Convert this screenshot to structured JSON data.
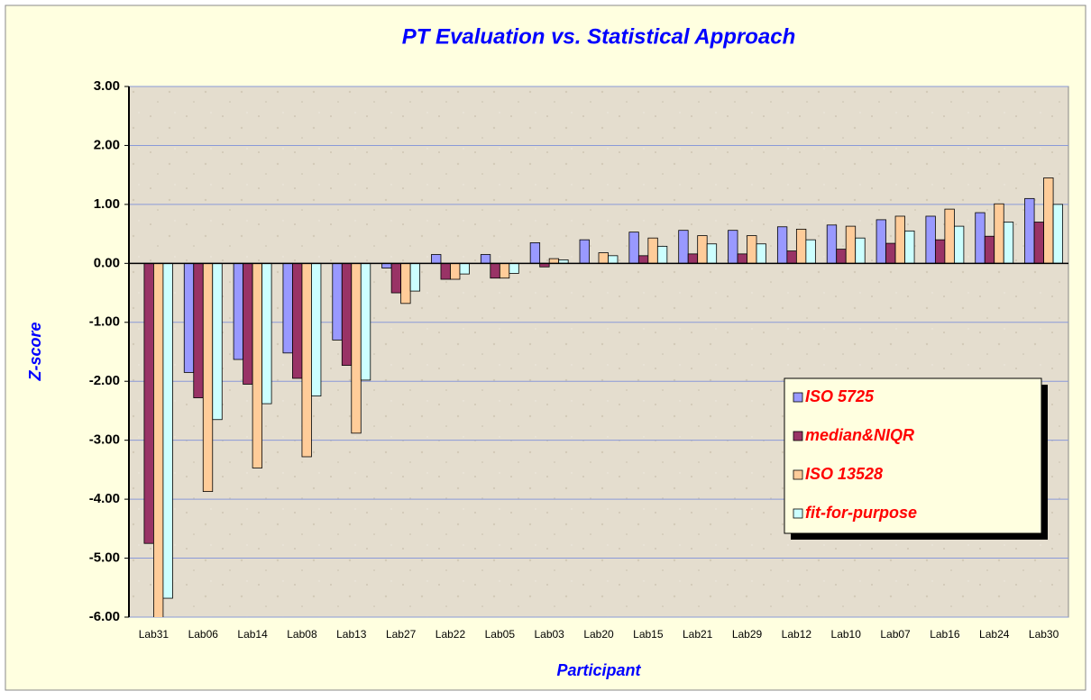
{
  "chart_data": {
    "type": "bar",
    "title": "PT Evaluation vs. Statistical Approach",
    "x_label": "Participant",
    "y_label": "Z-score",
    "categories": [
      "Lab31",
      "Lab06",
      "Lab14",
      "Lab08",
      "Lab13",
      "Lab27",
      "Lab22",
      "Lab05",
      "Lab03",
      "Lab20",
      "Lab15",
      "Lab21",
      "Lab29",
      "Lab12",
      "Lab10",
      "Lab07",
      "Lab16",
      "Lab24",
      "Lab30"
    ],
    "series": [
      {
        "name": "ISO 5725",
        "color": "#9999ff",
        "values": [
          null,
          -1.85,
          -1.63,
          -1.52,
          -1.3,
          -0.08,
          0.15,
          0.15,
          0.35,
          0.4,
          0.53,
          0.56,
          0.56,
          0.62,
          0.65,
          0.74,
          0.8,
          0.86,
          1.1
        ]
      },
      {
        "name": "median&NIQR",
        "color": "#993366",
        "values": [
          -4.75,
          -2.28,
          -2.05,
          -1.95,
          -1.73,
          -0.5,
          -0.27,
          -0.25,
          -0.06,
          0,
          0.13,
          0.16,
          0.16,
          0.21,
          0.24,
          0.34,
          0.4,
          0.46,
          0.7
        ]
      },
      {
        "name": "ISO 13528",
        "color": "#ffcc99",
        "values": [
          -6.3,
          -3.87,
          -3.47,
          -3.28,
          -2.88,
          -0.68,
          -0.27,
          -0.25,
          0.08,
          0.18,
          0.43,
          0.47,
          0.47,
          0.58,
          0.63,
          0.8,
          0.92,
          1.01,
          1.45
        ]
      },
      {
        "name": "fit-for-purpose",
        "color": "#ccffff",
        "values": [
          -5.68,
          -2.65,
          -2.38,
          -2.25,
          -1.98,
          -0.47,
          -0.18,
          -0.17,
          0.06,
          0.13,
          0.29,
          0.33,
          0.33,
          0.4,
          0.43,
          0.55,
          0.63,
          0.7,
          1.0
        ]
      }
    ],
    "ylim": [
      -6,
      3
    ],
    "yticks": [
      {
        "value": 3,
        "label": "3.00"
      },
      {
        "value": 2,
        "label": "2.00"
      },
      {
        "value": 1,
        "label": "1.00"
      },
      {
        "value": 0,
        "label": "0.00"
      },
      {
        "value": -1,
        "label": "-1.00"
      },
      {
        "value": -2,
        "label": "-2.00"
      },
      {
        "value": -3,
        "label": "-3.00"
      },
      {
        "value": -4,
        "label": "-4.00"
      },
      {
        "value": -5,
        "label": "-5.00"
      },
      {
        "value": -6,
        "label": "-6.00"
      }
    ],
    "grid": true,
    "legend": "right"
  }
}
